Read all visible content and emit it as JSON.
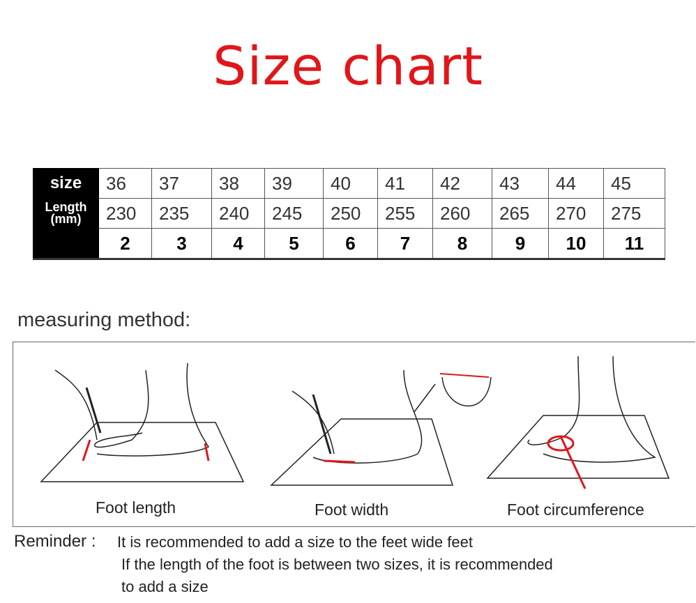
{
  "title": "Size chart",
  "table": {
    "row_labels": [
      "size",
      "Length",
      "(mm)",
      ""
    ],
    "sizes": [
      "36",
      "37",
      "38",
      "39",
      "40",
      "41",
      "42",
      "43",
      "44",
      "45"
    ],
    "lengths": [
      "230",
      "235",
      "240",
      "245",
      "250",
      "255",
      "260",
      "265",
      "270",
      "275"
    ],
    "us_sizes": [
      "2",
      "3",
      "4",
      "5",
      "6",
      "7",
      "8",
      "9",
      "10",
      "11"
    ]
  },
  "measuring": {
    "heading": "measuring method:",
    "captions": [
      "Foot length",
      "Foot width",
      "Foot circumference"
    ],
    "accent_color": "#e0161b"
  },
  "reminder": {
    "label": "Reminder :",
    "lines": [
      "It is recommended to add a size to the feet wide feet",
      "If the length of the foot is between two sizes, it is recommended",
      "to add a size"
    ]
  }
}
